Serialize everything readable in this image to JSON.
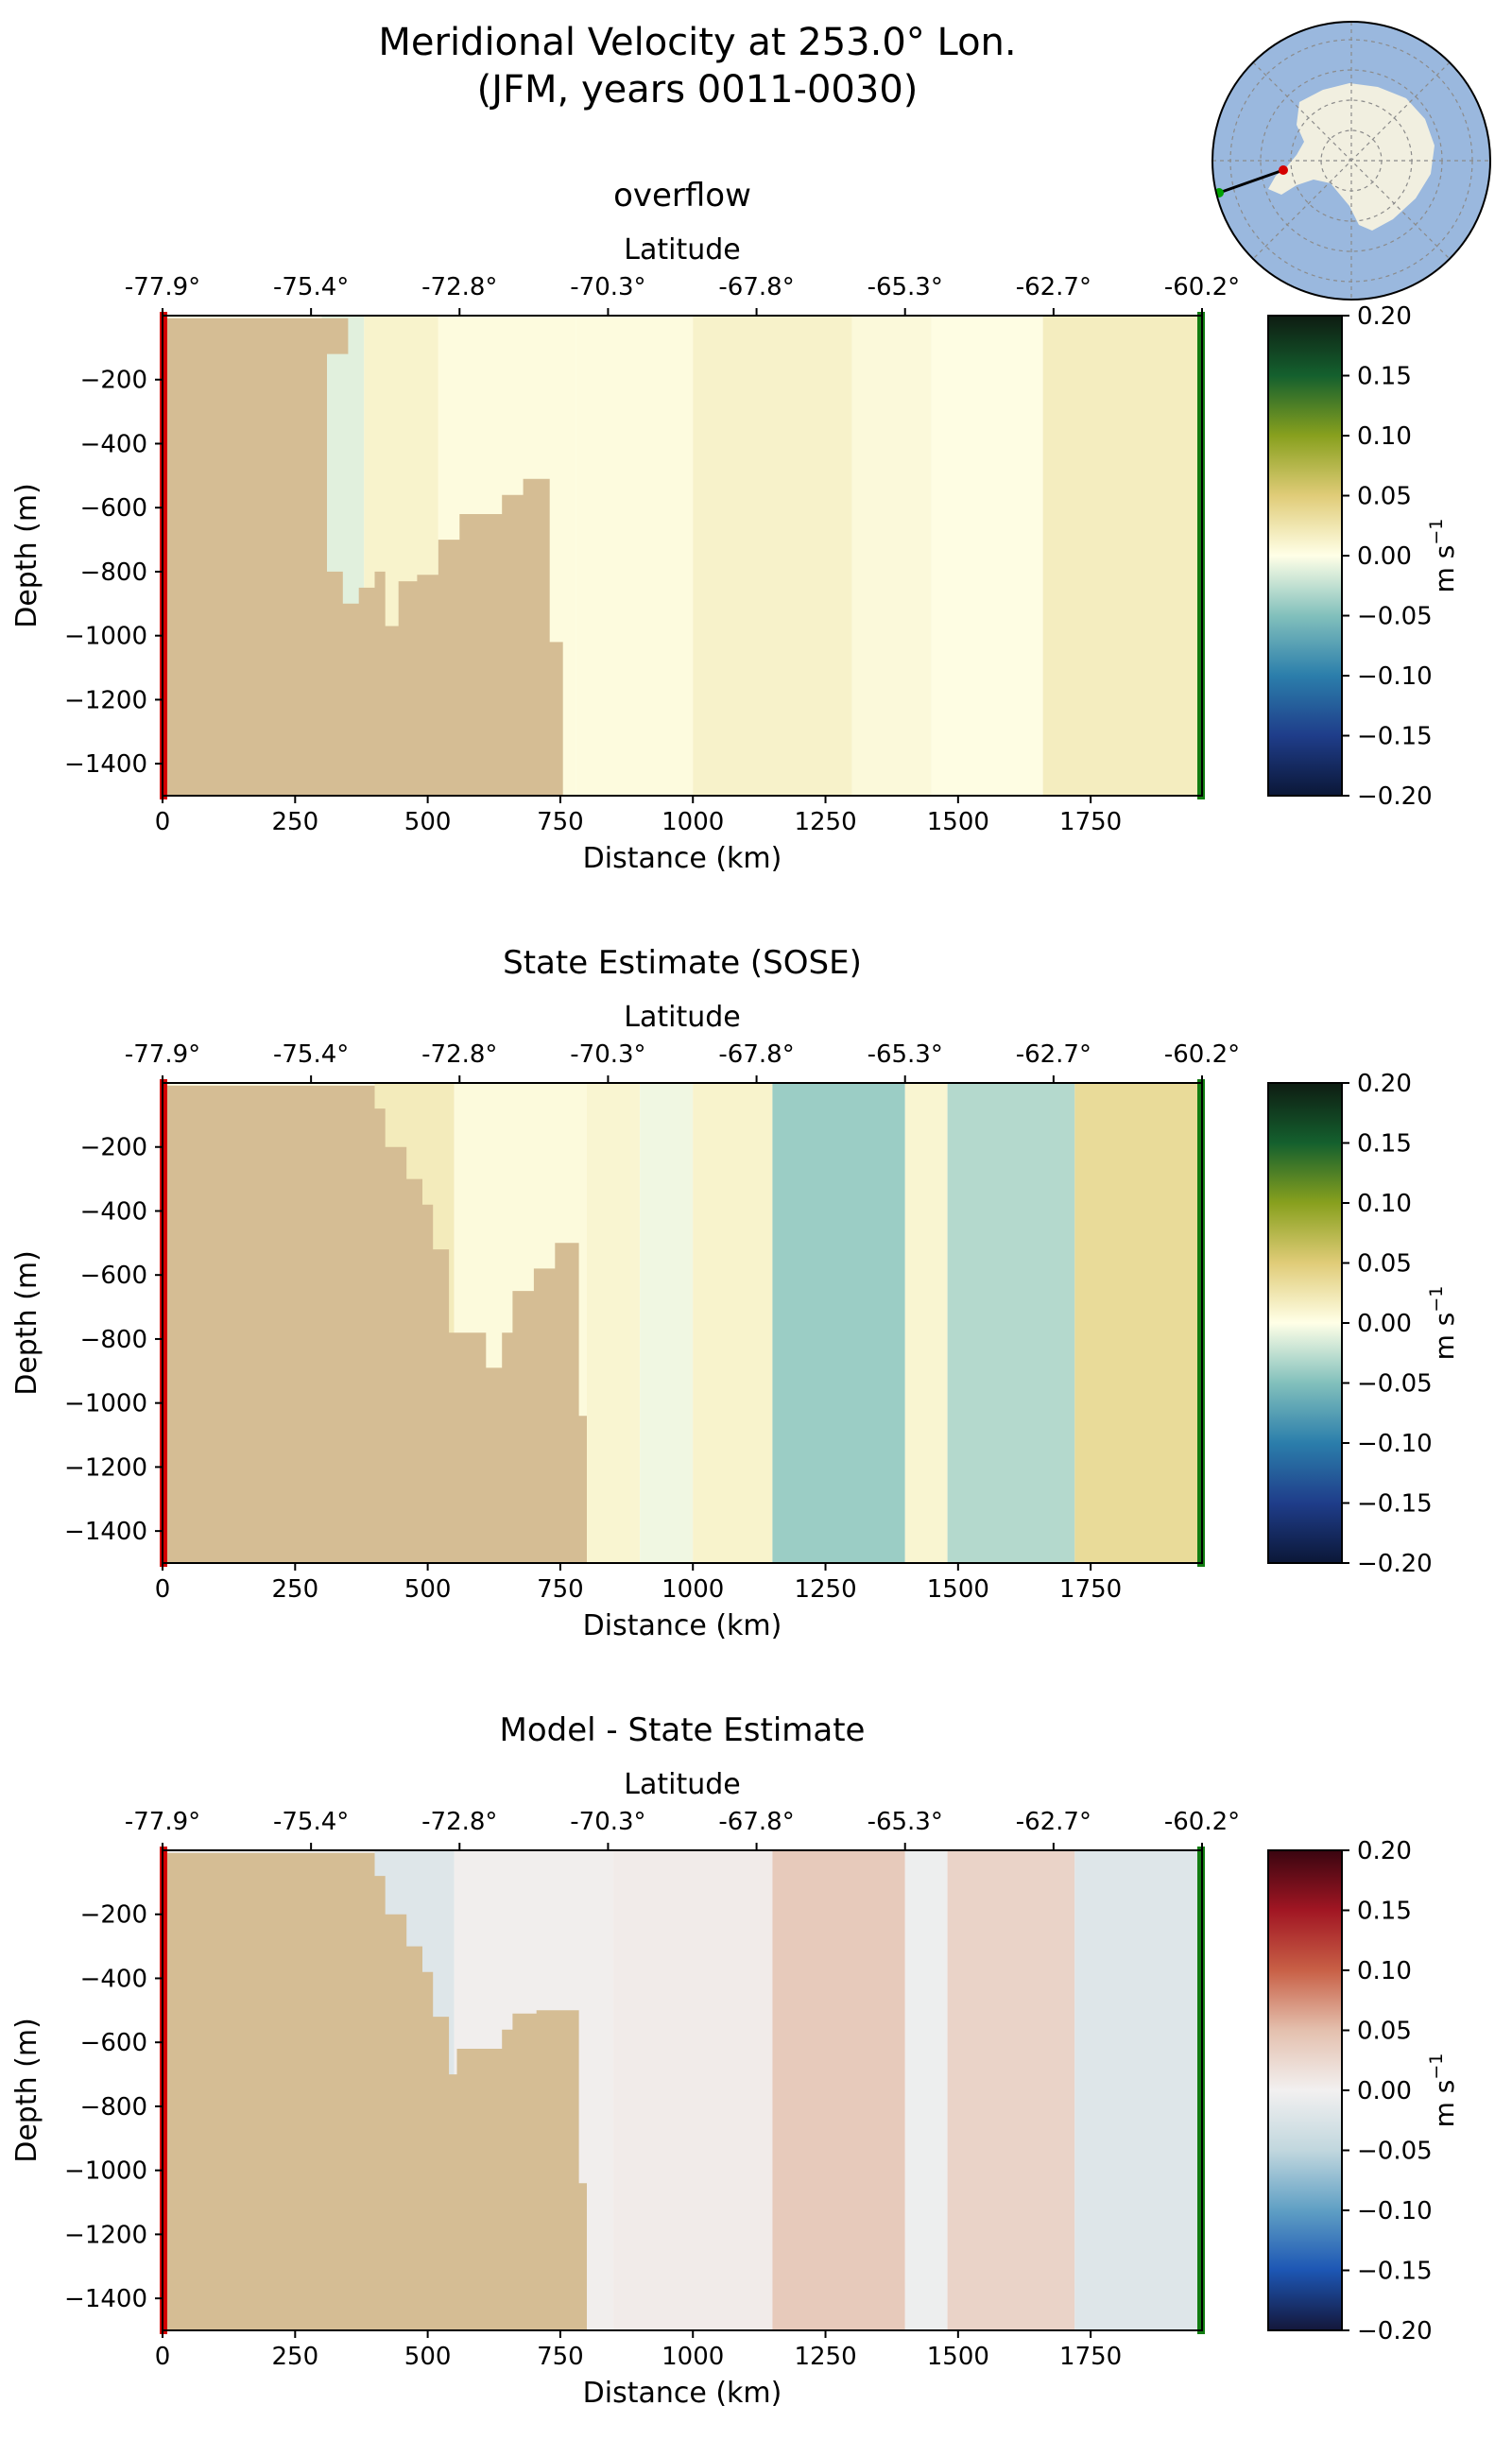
{
  "figure": {
    "title_line1": "Meridional Velocity at 253.0° Lon.",
    "title_line2": "(JFM, years 0011-0030)"
  },
  "inset_map": {
    "type": "south-polar-stereographic",
    "ocean_color": "#9ab8de",
    "land_color": "#f1efe0",
    "transect_start_marker_color": "#00a000",
    "transect_end_marker_color": "#d40000"
  },
  "colors": {
    "land_bathymetry": "#d5bd94",
    "start_edge": "#d40000",
    "end_edge": "#127d12",
    "border": "#000000"
  },
  "colorbars": {
    "velocity": {
      "stops": [
        "#0b1737",
        "#1f3d8a",
        "#2b7eab",
        "#82c0bc",
        "#ffffe7",
        "#e0cc78",
        "#88a01e",
        "#14602e",
        "#0e1c12"
      ],
      "ticks": [
        "0.20",
        "0.15",
        "0.10",
        "0.05",
        "0.00",
        "−0.05",
        "−0.10",
        "−0.15",
        "−0.20"
      ],
      "label": "m s",
      "label_sup": "−1"
    },
    "difference": {
      "stops": [
        "#14173a",
        "#1d56b4",
        "#5f9fc4",
        "#c1d7de",
        "#f2f0f0",
        "#e4c0ae",
        "#c86046",
        "#a11623",
        "#3a0510"
      ],
      "ticks": [
        "0.20",
        "0.15",
        "0.10",
        "0.05",
        "0.00",
        "−0.05",
        "−0.10",
        "−0.15",
        "−0.20"
      ],
      "label": "m s",
      "label_sup": "−1"
    }
  },
  "chart_data": [
    {
      "type": "heatmap",
      "title": "overflow",
      "xlabel": "Distance (km)",
      "ylabel": "Depth (m)",
      "top_xlabel": "Latitude",
      "x_ticks": [
        "0",
        "250",
        "500",
        "750",
        "1000",
        "1250",
        "1500",
        "1750"
      ],
      "y_ticks": [
        "−200",
        "−400",
        "−600",
        "−800",
        "−1000",
        "−1200",
        "−1400"
      ],
      "lat_ticks": [
        "-77.9°",
        "-75.4°",
        "-72.8°",
        "-70.3°",
        "-67.8°",
        "-65.3°",
        "-62.7°",
        "-60.2°"
      ],
      "xlim": [
        0,
        1960
      ],
      "ylim": [
        -1500,
        0
      ],
      "colorbar": "velocity",
      "clim": [
        -0.2,
        0.2
      ],
      "units": "m s^-1",
      "field": [
        {
          "distance_km": [
            0,
            300
          ],
          "value": 0.0
        },
        {
          "distance_km": [
            300,
            380
          ],
          "value": -0.012
        },
        {
          "distance_km": [
            380,
            520
          ],
          "value": 0.012
        },
        {
          "distance_km": [
            520,
            780
          ],
          "value": 0.004
        },
        {
          "distance_km": [
            780,
            1000
          ],
          "value": 0.004
        },
        {
          "distance_km": [
            1000,
            1300
          ],
          "value": 0.013
        },
        {
          "distance_km": [
            1300,
            1450
          ],
          "value": 0.006
        },
        {
          "distance_km": [
            1450,
            1660
          ],
          "value": 0.002
        },
        {
          "distance_km": [
            1660,
            1960
          ],
          "value": 0.018
        }
      ],
      "bathymetry_depth_m": [
        [
          0,
          -8
        ],
        [
          350,
          -8
        ],
        [
          350,
          -120
        ],
        [
          310,
          -120
        ],
        [
          310,
          -800
        ],
        [
          340,
          -800
        ],
        [
          340,
          -900
        ],
        [
          370,
          -900
        ],
        [
          370,
          -850
        ],
        [
          400,
          -850
        ],
        [
          400,
          -800
        ],
        [
          420,
          -800
        ],
        [
          420,
          -970
        ],
        [
          445,
          -970
        ],
        [
          445,
          -830
        ],
        [
          480,
          -830
        ],
        [
          480,
          -810
        ],
        [
          520,
          -810
        ],
        [
          520,
          -700
        ],
        [
          560,
          -700
        ],
        [
          560,
          -620
        ],
        [
          640,
          -620
        ],
        [
          640,
          -560
        ],
        [
          680,
          -560
        ],
        [
          680,
          -510
        ],
        [
          730,
          -510
        ],
        [
          730,
          -1020
        ],
        [
          755,
          -1020
        ],
        [
          755,
          -1500
        ],
        [
          0,
          -1500
        ]
      ]
    },
    {
      "type": "heatmap",
      "title": "State Estimate (SOSE)",
      "xlabel": "Distance (km)",
      "ylabel": "Depth (m)",
      "top_xlabel": "Latitude",
      "x_ticks": [
        "0",
        "250",
        "500",
        "750",
        "1000",
        "1250",
        "1500",
        "1750"
      ],
      "y_ticks": [
        "−200",
        "−400",
        "−600",
        "−800",
        "−1000",
        "−1200",
        "−1400"
      ],
      "lat_ticks": [
        "-77.9°",
        "-75.4°",
        "-72.8°",
        "-70.3°",
        "-67.8°",
        "-65.3°",
        "-62.7°",
        "-60.2°"
      ],
      "xlim": [
        0,
        1960
      ],
      "ylim": [
        -1500,
        0
      ],
      "colorbar": "velocity",
      "clim": [
        -0.2,
        0.2
      ],
      "units": "m s^-1",
      "field": [
        {
          "distance_km": [
            0,
            400
          ],
          "value": 0.0
        },
        {
          "distance_km": [
            400,
            550
          ],
          "value": 0.02
        },
        {
          "distance_km": [
            550,
            800
          ],
          "value": 0.005
        },
        {
          "distance_km": [
            800,
            900
          ],
          "value": 0.01
        },
        {
          "distance_km": [
            900,
            1000
          ],
          "value": -0.006
        },
        {
          "distance_km": [
            1000,
            1150
          ],
          "value": 0.012
        },
        {
          "distance_km": [
            1150,
            1400
          ],
          "value": -0.04
        },
        {
          "distance_km": [
            1400,
            1480
          ],
          "value": 0.01
        },
        {
          "distance_km": [
            1480,
            1720
          ],
          "value": -0.03
        },
        {
          "distance_km": [
            1720,
            1960
          ],
          "value": 0.035
        }
      ],
      "bathymetry_depth_m": [
        [
          0,
          -8
        ],
        [
          400,
          -8
        ],
        [
          400,
          -80
        ],
        [
          420,
          -80
        ],
        [
          420,
          -200
        ],
        [
          460,
          -200
        ],
        [
          460,
          -300
        ],
        [
          490,
          -300
        ],
        [
          490,
          -380
        ],
        [
          510,
          -380
        ],
        [
          510,
          -520
        ],
        [
          540,
          -520
        ],
        [
          540,
          -780
        ],
        [
          610,
          -780
        ],
        [
          610,
          -890
        ],
        [
          640,
          -890
        ],
        [
          640,
          -780
        ],
        [
          660,
          -780
        ],
        [
          660,
          -650
        ],
        [
          700,
          -650
        ],
        [
          700,
          -580
        ],
        [
          740,
          -580
        ],
        [
          740,
          -500
        ],
        [
          785,
          -500
        ],
        [
          785,
          -1040
        ],
        [
          800,
          -1040
        ],
        [
          800,
          -1500
        ],
        [
          0,
          -1500
        ]
      ]
    },
    {
      "type": "heatmap",
      "title": "Model - State Estimate",
      "xlabel": "Distance (km)",
      "ylabel": "Depth (m)",
      "top_xlabel": "Latitude",
      "x_ticks": [
        "0",
        "250",
        "500",
        "750",
        "1000",
        "1250",
        "1500",
        "1750"
      ],
      "y_ticks": [
        "−200",
        "−400",
        "−600",
        "−800",
        "−1000",
        "−1200",
        "−1400"
      ],
      "lat_ticks": [
        "-77.9°",
        "-75.4°",
        "-72.8°",
        "-70.3°",
        "-67.8°",
        "-65.3°",
        "-62.7°",
        "-60.2°"
      ],
      "xlim": [
        0,
        1960
      ],
      "ylim": [
        -1500,
        0
      ],
      "colorbar": "difference",
      "clim": [
        -0.2,
        0.2
      ],
      "units": "m s^-1",
      "field": [
        {
          "distance_km": [
            0,
            400
          ],
          "value": 0.0
        },
        {
          "distance_km": [
            400,
            550
          ],
          "value": -0.02
        },
        {
          "distance_km": [
            550,
            850
          ],
          "value": 0.002
        },
        {
          "distance_km": [
            850,
            1150
          ],
          "value": 0.005
        },
        {
          "distance_km": [
            1150,
            1400
          ],
          "value": 0.04
        },
        {
          "distance_km": [
            1400,
            1480
          ],
          "value": -0.005
        },
        {
          "distance_km": [
            1480,
            1720
          ],
          "value": 0.03
        },
        {
          "distance_km": [
            1720,
            1960
          ],
          "value": -0.02
        }
      ],
      "bathymetry_depth_m": [
        [
          0,
          -8
        ],
        [
          400,
          -8
        ],
        [
          400,
          -80
        ],
        [
          420,
          -80
        ],
        [
          420,
          -200
        ],
        [
          460,
          -200
        ],
        [
          460,
          -300
        ],
        [
          490,
          -300
        ],
        [
          490,
          -380
        ],
        [
          510,
          -380
        ],
        [
          510,
          -520
        ],
        [
          540,
          -520
        ],
        [
          540,
          -700
        ],
        [
          555,
          -700
        ],
        [
          555,
          -620
        ],
        [
          640,
          -620
        ],
        [
          640,
          -560
        ],
        [
          660,
          -560
        ],
        [
          660,
          -510
        ],
        [
          705,
          -510
        ],
        [
          705,
          -500
        ],
        [
          785,
          -500
        ],
        [
          785,
          -1040
        ],
        [
          800,
          -1040
        ],
        [
          800,
          -1500
        ],
        [
          0,
          -1500
        ]
      ]
    }
  ]
}
